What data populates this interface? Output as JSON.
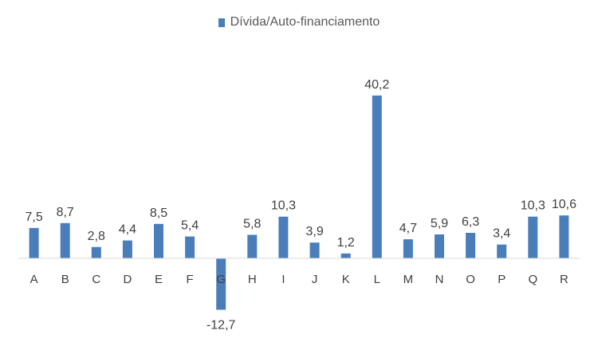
{
  "chart_data": {
    "type": "bar",
    "categories": [
      "A",
      "B",
      "C",
      "D",
      "E",
      "F",
      "G",
      "H",
      "I",
      "J",
      "K",
      "L",
      "M",
      "N",
      "O",
      "P",
      "Q",
      "R"
    ],
    "series": [
      {
        "name": "Dívida/Auto-financiamento",
        "values": [
          7.5,
          8.7,
          2.8,
          4.4,
          8.5,
          5.4,
          -12.7,
          5.8,
          10.3,
          3.9,
          1.2,
          40.2,
          4.7,
          5.9,
          6.3,
          3.4,
          10.3,
          10.6
        ],
        "data_labels": [
          "7,5",
          "8,7",
          "2,8",
          "4,4",
          "8,5",
          "5,4",
          "-12,7",
          "5,8",
          "10,3",
          "3,9",
          "1,2",
          "40,2",
          "4,7",
          "5,9",
          "6,3",
          "3,4",
          "10,3",
          "10,6"
        ]
      }
    ],
    "title": "",
    "xlabel": "",
    "ylabel": "",
    "legend_position": "top-center",
    "grid": false,
    "colors": {
      "bar": "#4a7ebb",
      "axis": "#d9d9d9",
      "text": "#404040",
      "legend_text": "#595959"
    }
  }
}
